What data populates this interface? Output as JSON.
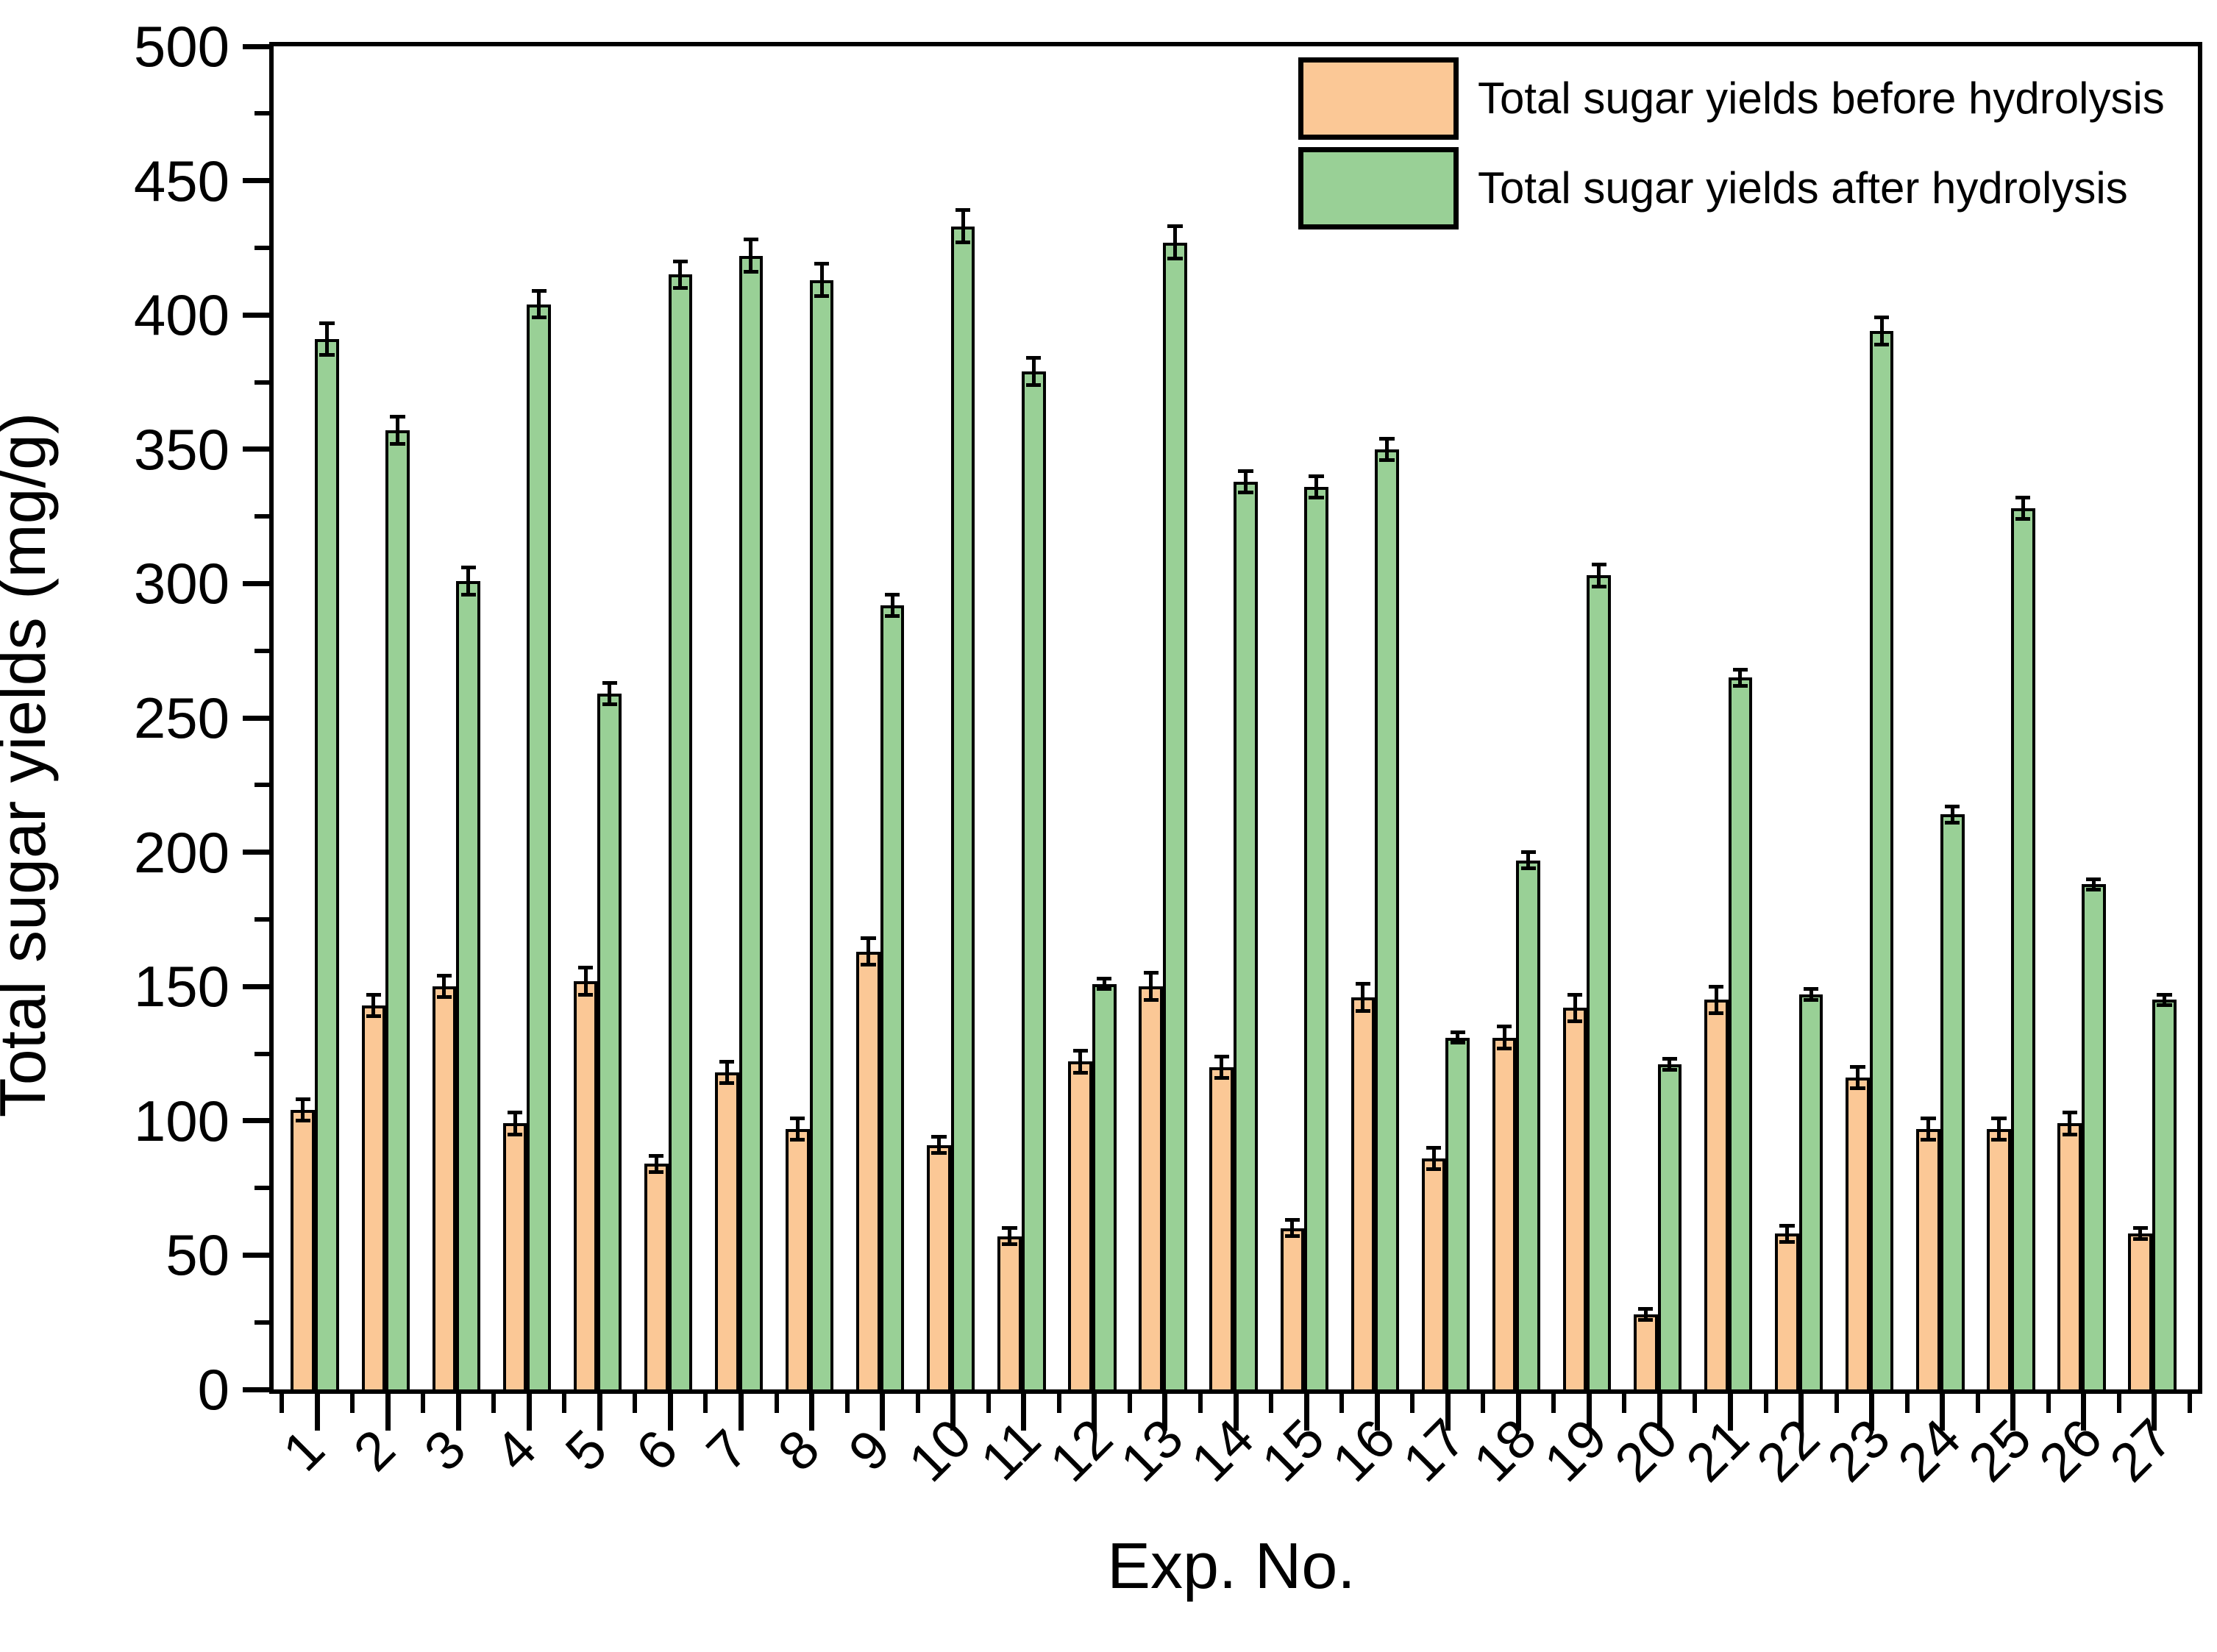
{
  "axes": {
    "y_label": "Total sugar yields (mg/g)",
    "x_label": "Exp. No.",
    "y_ticks": [
      0,
      50,
      100,
      150,
      200,
      250,
      300,
      350,
      400,
      450,
      500
    ]
  },
  "legend": {
    "items": [
      {
        "label": "Total sugar yields before hydrolysis",
        "color": "#FBC896"
      },
      {
        "label": "Total sugar yields after hydrolysis",
        "color": "#99D096"
      }
    ]
  },
  "chart_data": {
    "type": "bar",
    "title": "",
    "xlabel": "Exp. No.",
    "ylabel": "Total sugar yields (mg/g)",
    "ylim": [
      0,
      500
    ],
    "ytick_major_interval": 50,
    "ytick_minor_interval": 25,
    "grid": false,
    "legend_position": "top-right-inside",
    "error_bars": true,
    "categories": [
      "1",
      "2",
      "3",
      "4",
      "5",
      "6",
      "7",
      "8",
      "9",
      "10",
      "11",
      "12",
      "13",
      "14",
      "15",
      "16",
      "17",
      "18",
      "19",
      "20",
      "21",
      "22",
      "23",
      "24",
      "25",
      "26",
      "27"
    ],
    "series": [
      {
        "name": "Total sugar yields before hydrolysis",
        "color": "#FBC896",
        "border_color": "#000000",
        "values": [
          104,
          143,
          150,
          99,
          152,
          84,
          118,
          97,
          163,
          91,
          57,
          122,
          150,
          120,
          60,
          146,
          86,
          131,
          142,
          28,
          145,
          58,
          116,
          97,
          97,
          99,
          58
        ],
        "errors": [
          4,
          4,
          4,
          4,
          5,
          3,
          4,
          4,
          5,
          3,
          3,
          4,
          5,
          4,
          3,
          5,
          4,
          4,
          5,
          2,
          5,
          3,
          4,
          4,
          4,
          4,
          2
        ]
      },
      {
        "name": "Total sugar yields after hydrolysis",
        "color": "#99D096",
        "border_color": "#000000",
        "values": [
          391,
          357,
          301,
          404,
          259,
          415,
          422,
          413,
          292,
          433,
          379,
          151,
          427,
          338,
          336,
          350,
          131,
          197,
          303,
          121,
          265,
          147,
          394,
          214,
          328,
          188,
          145
        ],
        "errors": [
          6,
          5,
          5,
          5,
          4,
          5,
          6,
          6,
          4,
          6,
          5,
          2,
          6,
          4,
          4,
          4,
          2,
          3,
          4,
          2,
          3,
          2,
          5,
          3,
          4,
          2,
          2
        ]
      }
    ]
  }
}
